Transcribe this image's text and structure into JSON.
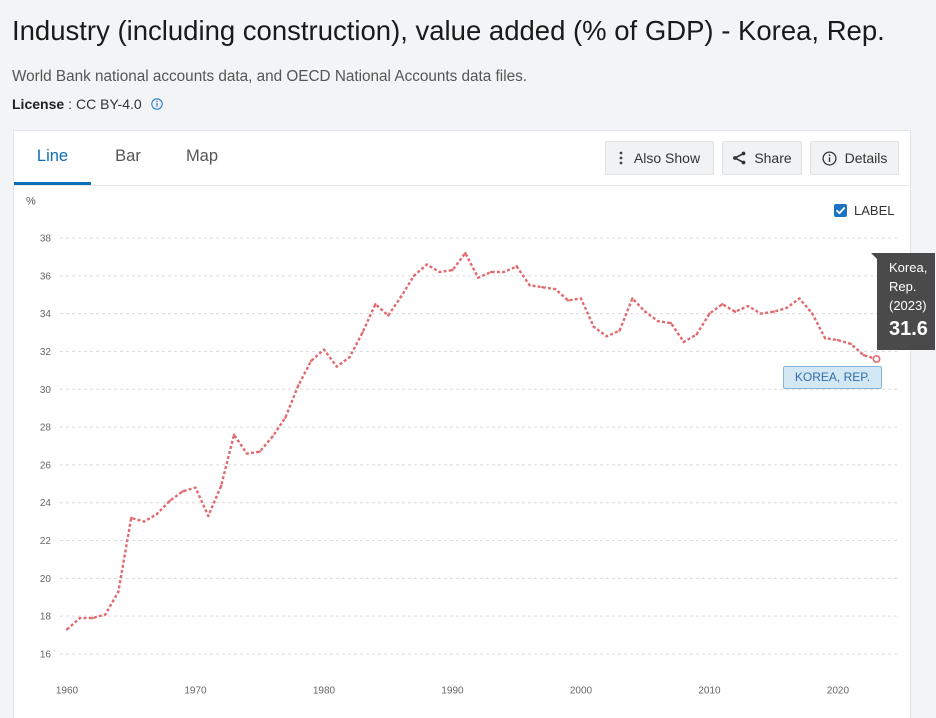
{
  "page": {
    "title": "Industry (including construction), value added (% of GDP) - Korea, Rep.",
    "source": "World Bank national accounts data, and OECD National Accounts data files."
  },
  "license": {
    "label": "License",
    "separator": ":",
    "value": "CC BY-4.0",
    "icon": "info-circle-icon"
  },
  "tabs": [
    {
      "label": "Line",
      "active": true
    },
    {
      "label": "Bar",
      "active": false
    },
    {
      "label": "Map",
      "active": false
    }
  ],
  "toolbar": {
    "also_show": {
      "label": "Also Show",
      "icon": "vertical-ellipsis-icon"
    },
    "share": {
      "label": "Share",
      "icon": "share-icon"
    },
    "details": {
      "label": "Details",
      "icon": "info-circle-icon"
    }
  },
  "label_toggle": {
    "label": "LABEL",
    "checked": true,
    "icon": "checkbox-checked-icon"
  },
  "tooltip": {
    "lines": [
      "Korea,",
      "Rep.",
      "(2023)"
    ],
    "value": "31.6"
  },
  "colors": {
    "accent": "#0b6fb8",
    "series_line": "#e06c70",
    "tooltip_bg": "#4a4a4a",
    "label_bg": "#d4e7f4",
    "label_border": "#86b5d8",
    "label_text": "#2f6eab",
    "checkbox": "#1d72c4",
    "page_bg": "#f2f4f6"
  },
  "chart_data": {
    "type": "line",
    "ylabel": "%",
    "xlim": [
      1960,
      2023
    ],
    "ylim": [
      16,
      38
    ],
    "xticks": [
      1960,
      1970,
      1980,
      1990,
      2000,
      2010,
      2020
    ],
    "yticks": [
      16,
      18,
      20,
      22,
      24,
      26,
      28,
      30,
      32,
      34,
      36,
      38
    ],
    "grid": true,
    "series": [
      {
        "name": "KOREA, REP.",
        "x": [
          1960,
          1961,
          1962,
          1963,
          1964,
          1965,
          1966,
          1967,
          1968,
          1969,
          1970,
          1971,
          1972,
          1973,
          1974,
          1975,
          1976,
          1977,
          1978,
          1979,
          1980,
          1981,
          1982,
          1983,
          1984,
          1985,
          1986,
          1987,
          1988,
          1989,
          1990,
          1991,
          1992,
          1993,
          1994,
          1995,
          1996,
          1997,
          1998,
          1999,
          2000,
          2001,
          2002,
          2003,
          2004,
          2005,
          2006,
          2007,
          2008,
          2009,
          2010,
          2011,
          2012,
          2013,
          2014,
          2015,
          2016,
          2017,
          2018,
          2019,
          2020,
          2021,
          2022,
          2023
        ],
        "values": [
          17.3,
          17.9,
          17.9,
          18.1,
          19.3,
          23.2,
          23.0,
          23.4,
          24.1,
          24.6,
          24.8,
          23.3,
          24.9,
          27.6,
          26.6,
          26.7,
          27.5,
          28.5,
          30.2,
          31.5,
          32.1,
          31.2,
          31.7,
          33.0,
          34.5,
          33.9,
          34.9,
          36.0,
          36.6,
          36.2,
          36.3,
          37.2,
          35.9,
          36.2,
          36.2,
          36.5,
          35.5,
          35.4,
          35.3,
          34.7,
          34.8,
          33.3,
          32.8,
          33.1,
          34.8,
          34.1,
          33.6,
          33.5,
          32.5,
          32.9,
          34.0,
          34.5,
          34.1,
          34.4,
          34.0,
          34.1,
          34.3,
          34.8,
          34.0,
          32.7,
          32.6,
          32.4,
          31.8,
          31.6
        ]
      }
    ]
  }
}
